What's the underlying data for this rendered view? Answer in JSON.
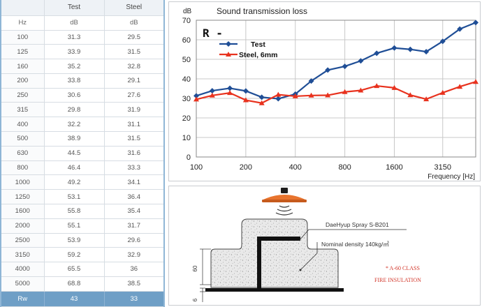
{
  "table": {
    "headers": [
      "",
      "Test",
      "Steel"
    ],
    "units": [
      "Hz",
      "dB",
      "dB"
    ],
    "rows": [
      [
        "100",
        "31.3",
        "29.5"
      ],
      [
        "125",
        "33.9",
        "31.5"
      ],
      [
        "160",
        "35.2",
        "32.8"
      ],
      [
        "200",
        "33.8",
        "29.1"
      ],
      [
        "250",
        "30.6",
        "27.6"
      ],
      [
        "315",
        "29.8",
        "31.9"
      ],
      [
        "400",
        "32.2",
        "31.1"
      ],
      [
        "500",
        "38.9",
        "31.5"
      ],
      [
        "630",
        "44.5",
        "31.6"
      ],
      [
        "800",
        "46.4",
        "33.3"
      ],
      [
        "1000",
        "49.2",
        "34.1"
      ],
      [
        "1250",
        "53.1",
        "36.4"
      ],
      [
        "1600",
        "55.8",
        "35.4"
      ],
      [
        "2000",
        "55.1",
        "31.7"
      ],
      [
        "2500",
        "53.9",
        "29.6"
      ],
      [
        "3150",
        "59.2",
        "32.9"
      ],
      [
        "4000",
        "65.5",
        "36"
      ],
      [
        "5000",
        "68.8",
        "38.5"
      ]
    ],
    "rw": [
      "Rw",
      "43",
      "33"
    ]
  },
  "chart_data": {
    "type": "line",
    "title": "Sound transmission loss",
    "ylabel": "dB",
    "xlabel": "Frequency [Hz]",
    "annotation": "R -",
    "x": [
      100,
      125,
      160,
      200,
      250,
      315,
      400,
      500,
      630,
      800,
      1000,
      1250,
      1600,
      2000,
      2500,
      3150,
      4000,
      5000
    ],
    "x_tick_labels": [
      "100",
      "200",
      "400",
      "800",
      "1600",
      "3150"
    ],
    "x_tick_positions": [
      100,
      200,
      400,
      800,
      1600,
      3150
    ],
    "ylim": [
      0,
      70
    ],
    "y_ticks": [
      "0",
      "10",
      "20",
      "30",
      "40",
      "50",
      "60",
      "70"
    ],
    "x_scale": "log",
    "grid": true,
    "legend_placement": "upper-left",
    "series": [
      {
        "name": "Test",
        "color": "#1f4e96",
        "marker": "diamond",
        "values": [
          31.3,
          33.9,
          35.2,
          33.8,
          30.6,
          29.8,
          32.2,
          38.9,
          44.5,
          46.4,
          49.2,
          53.1,
          55.8,
          55.1,
          53.9,
          59.2,
          65.5,
          68.8
        ]
      },
      {
        "name": "Steel, 6mm",
        "color": "#e8321e",
        "marker": "triangle",
        "values": [
          29.5,
          31.5,
          32.8,
          29.1,
          27.6,
          31.9,
          31.1,
          31.5,
          31.6,
          33.3,
          34.1,
          36.4,
          35.4,
          31.7,
          29.6,
          32.9,
          36,
          38.5
        ]
      }
    ]
  },
  "diagram": {
    "product_label": "DaeHyup Spray S-B201",
    "density_label": "Nominal density 140kg/㎥",
    "class_label": "* A-60 CLASS",
    "insulation_label": "FIRE INSULATION",
    "dim_60": "60",
    "dim_6": "6",
    "colors": {
      "nozzle": "#e8742e",
      "text_red": "#d2362a"
    }
  }
}
